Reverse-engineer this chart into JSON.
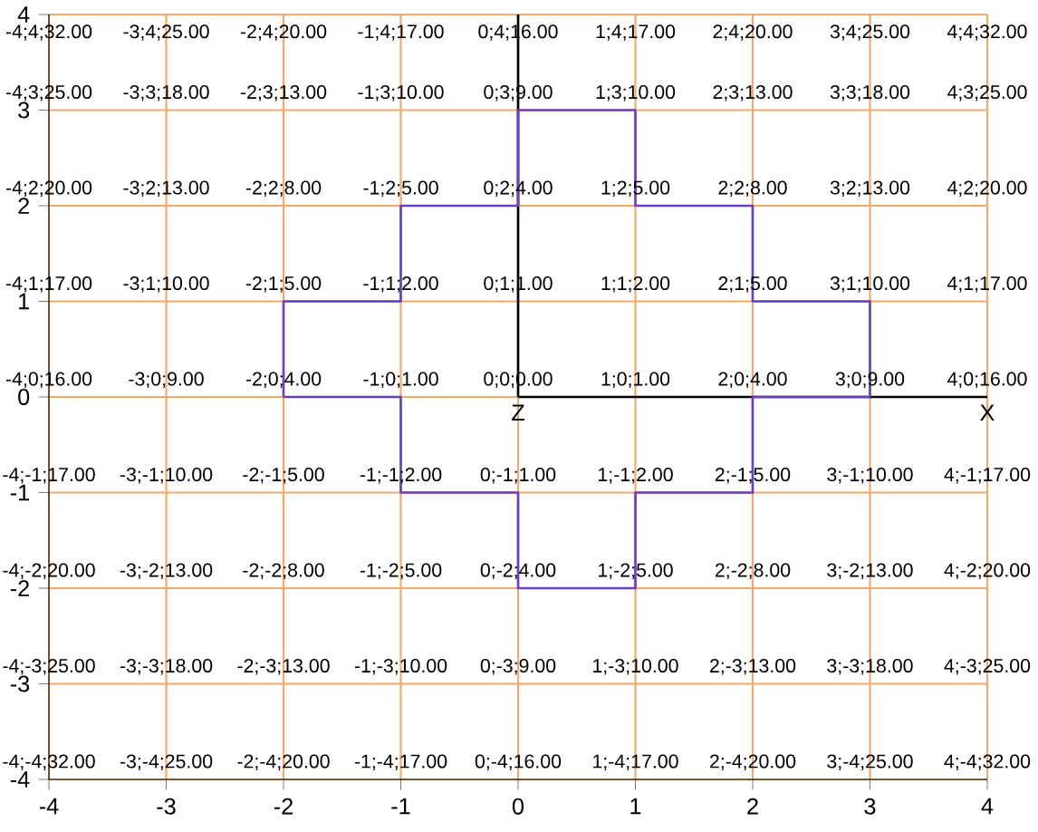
{
  "chart_data": {
    "type": "line",
    "xlim": [
      -4,
      4
    ],
    "ylim": [
      -4,
      4
    ],
    "xticks": [
      -4,
      -3,
      -2,
      -1,
      0,
      1,
      2,
      3,
      4
    ],
    "yticks": [
      -4,
      -3,
      -2,
      -1,
      0,
      1,
      2,
      3,
      4
    ],
    "grid": true,
    "series": [
      {
        "color": "#6a3fc0",
        "x": [
          -2,
          -2,
          -1,
          -1,
          0,
          0,
          1,
          1,
          2,
          2,
          3,
          3
        ],
        "values": [
          0,
          1,
          1,
          2,
          2,
          3,
          3,
          2,
          2,
          1,
          1,
          0
        ]
      },
      {
        "color": "#6a3fc0",
        "x": [
          -2,
          -1,
          -1,
          0,
          0,
          1,
          1,
          2,
          2,
          3
        ],
        "values": [
          0,
          0,
          -1,
          -1,
          -2,
          -2,
          -1,
          -1,
          0,
          0
        ]
      },
      {
        "name": "Z",
        "color": "#000000",
        "x": [
          0,
          0
        ],
        "values": [
          4,
          0
        ]
      },
      {
        "name": "X",
        "color": "#000000",
        "x": [
          0,
          4
        ],
        "values": [
          0,
          0
        ]
      }
    ],
    "annotations": [
      "-4;4;32.00",
      "-3;4;25.00",
      "-2;4;20.00",
      "-1;4;17.00",
      "0;4;16.00",
      "1;4;17.00",
      "2;4;20.00",
      "3;4;25.00",
      "4;4;32.00",
      "-4;3;25.00",
      "-3;3;18.00",
      "-2;3;13.00",
      "-1;3;10.00",
      "0;3;9.00",
      "1;3;10.00",
      "2;3;13.00",
      "3;3;18.00",
      "4;3;25.00",
      "-4;2;20.00",
      "-3;2;13.00",
      "-2;2;8.00",
      "-1;2;5.00",
      "0;2;4.00",
      "1;2;5.00",
      "2;2;8.00",
      "3;2;13.00",
      "4;2;20.00",
      "-4;1;17.00",
      "-3;1;10.00",
      "-2;1;5.00",
      "-1;1;2.00",
      "0;1;1.00",
      "1;1;2.00",
      "2;1;5.00",
      "3;1;10.00",
      "4;1;17.00",
      "-4;0;16.00",
      "-3;0;9.00",
      "-2;0;4.00",
      "-1;0;1.00",
      "0;0;0.00",
      "1;0;1.00",
      "2;0;4.00",
      "3;0;9.00",
      "4;0;16.00",
      "-4;-1;17.00",
      "-3;-1;10.00",
      "-2;-1;5.00",
      "-1;-1;2.00",
      "0;-1;1.00",
      "1;-1;2.00",
      "2;-1;5.00",
      "3;-1;10.00",
      "4;-1;17.00",
      "-4;-2;20.00",
      "-3;-2;13.00",
      "-2;-2;8.00",
      "-1;-2;5.00",
      "0;-2;4.00",
      "1;-2;5.00",
      "2;-2;8.00",
      "3;-2;13.00",
      "4;-2;20.00",
      "-4;-3;25.00",
      "-3;-3;18.00",
      "-2;-3;13.00",
      "-1;-3;10.00",
      "0;-3;9.00",
      "1;-3;10.00",
      "2;-3;13.00",
      "3;-3;18.00",
      "4;-3;25.00",
      "-4;-4;32.00",
      "-3;-4;25.00",
      "-2;-4;20.00",
      "-1;-4;17.00",
      "0;-4;16.00",
      "1;-4;17.00",
      "2;-4;20.00",
      "3;-4;25.00",
      "4;-4;32.00"
    ]
  }
}
